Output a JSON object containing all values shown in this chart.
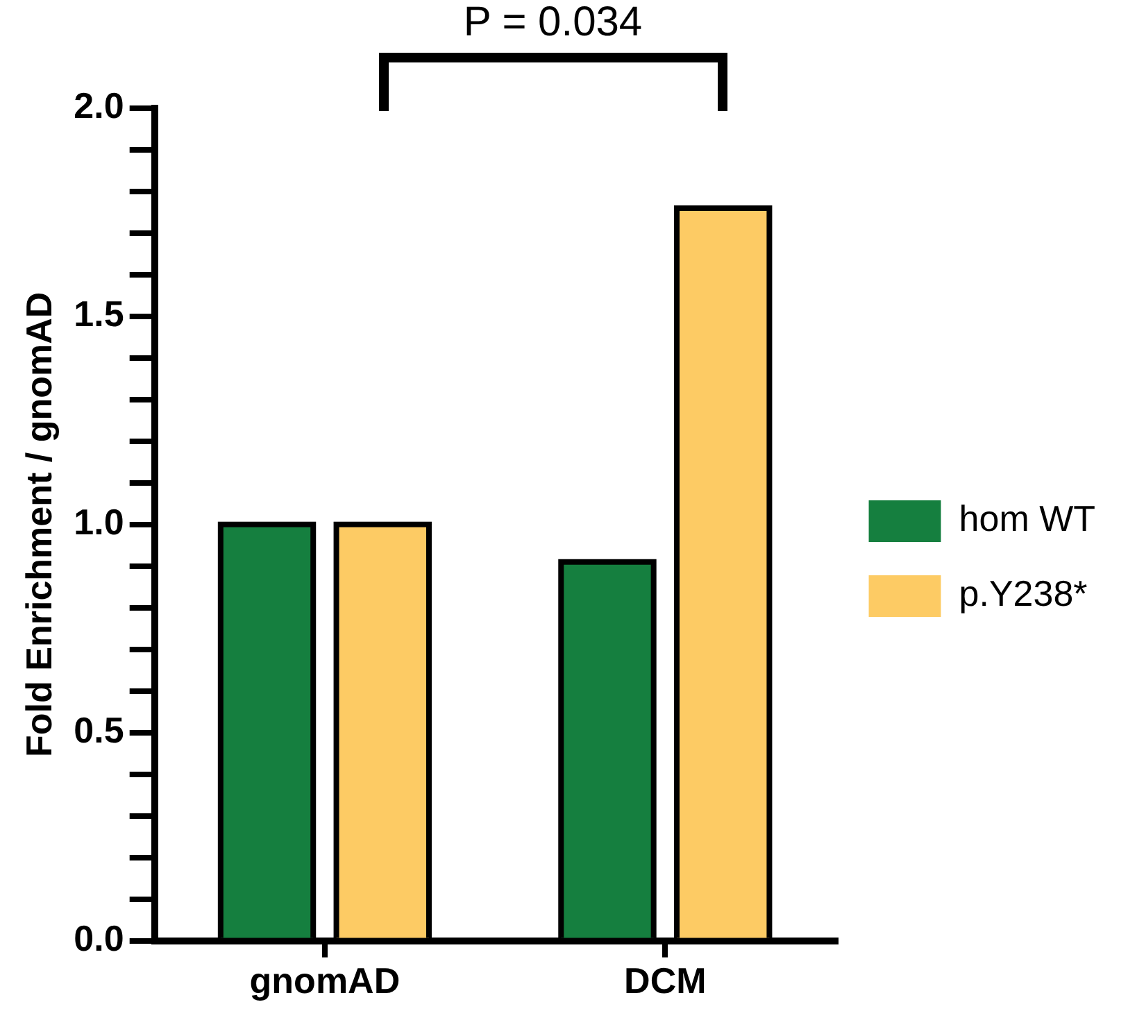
{
  "chart_data": {
    "type": "bar",
    "ylabel": "Fold Enrichment / gnomAD",
    "categories": [
      "gnomAD",
      "DCM"
    ],
    "series": [
      {
        "name": "hom WT",
        "color": "#157f3f",
        "values": [
          1.0,
          0.91
        ]
      },
      {
        "name": "p.Y238*",
        "color": "#fdcb64",
        "values": [
          1.0,
          1.76
        ]
      }
    ],
    "ylim": [
      0,
      2.0
    ],
    "yticks": [
      {
        "value": 0,
        "label": "0.0"
      },
      {
        "value": 0.1,
        "label": null
      },
      {
        "value": 0.2,
        "label": null
      },
      {
        "value": 0.3,
        "label": null
      },
      {
        "value": 0.4,
        "label": null
      },
      {
        "value": 0.5,
        "label": "0.5"
      },
      {
        "value": 0.6,
        "label": null
      },
      {
        "value": 0.7,
        "label": null
      },
      {
        "value": 0.8,
        "label": null
      },
      {
        "value": 0.9,
        "label": null
      },
      {
        "value": 1.0,
        "label": "1.0"
      },
      {
        "value": 1.1,
        "label": null
      },
      {
        "value": 1.2,
        "label": null
      },
      {
        "value": 1.3,
        "label": null
      },
      {
        "value": 1.4,
        "label": null
      },
      {
        "value": 1.5,
        "label": "1.5"
      },
      {
        "value": 1.6,
        "label": null
      },
      {
        "value": 1.7,
        "label": null
      },
      {
        "value": 1.8,
        "label": null
      },
      {
        "value": 1.9,
        "label": null
      },
      {
        "value": 2.0,
        "label": "2.0"
      }
    ],
    "annotations": [
      "P = 0.034"
    ],
    "grid": false,
    "legend": "right"
  }
}
